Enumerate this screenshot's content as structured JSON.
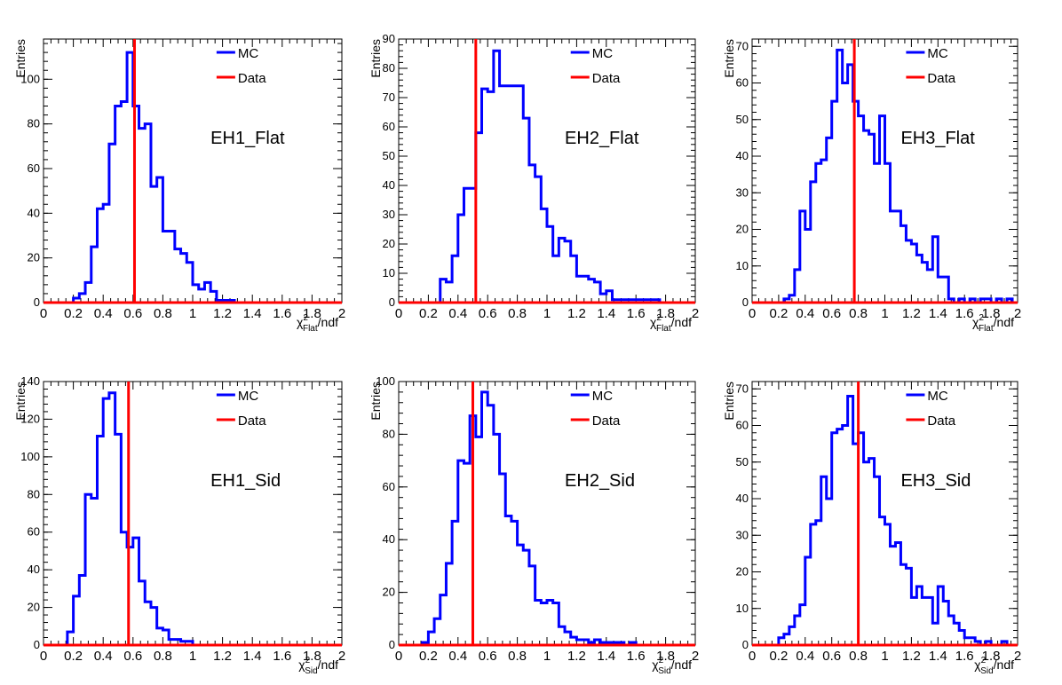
{
  "chart_data": [
    {
      "type": "bar",
      "id": "p1",
      "panel_label": "EH1_Flat",
      "ylabel": "Entries",
      "xlabel": {
        "sym": "χ",
        "sup": "2",
        "sub": "Flat",
        "tail": "/ndf"
      },
      "xlim": [
        0,
        2
      ],
      "xticks": [
        "0",
        "0.2",
        "0.4",
        "0.6",
        "0.8",
        "1",
        "1.2",
        "1.4",
        "1.6",
        "1.8",
        "2"
      ],
      "ylim": [
        0,
        118
      ],
      "yticks": [
        0,
        20,
        40,
        60,
        80,
        100
      ],
      "bin_width": 0.04,
      "data_line_x": 0.61,
      "mc_values": [
        0,
        0,
        0,
        0,
        0,
        2,
        4,
        9,
        25,
        42,
        44,
        71,
        88,
        90,
        112,
        88,
        78,
        80,
        52,
        56,
        32,
        32,
        24,
        22,
        18,
        8,
        6,
        9,
        5,
        1,
        1,
        1,
        0,
        0,
        0,
        0,
        0,
        0,
        0,
        0,
        0,
        0,
        0,
        0,
        0,
        0,
        0,
        0,
        0,
        0
      ],
      "legend": [
        {
          "name": "MC",
          "color": "#0000ff"
        },
        {
          "name": "Data",
          "color": "#ff0000"
        }
      ]
    },
    {
      "type": "bar",
      "id": "p2",
      "panel_label": "EH2_Flat",
      "ylabel": "Entries",
      "xlabel": {
        "sym": "χ",
        "sup": "2",
        "sub": "Flat",
        "tail": "/ndf"
      },
      "xlim": [
        0,
        2
      ],
      "xticks": [
        "0",
        "0.2",
        "0.4",
        "0.6",
        "0.8",
        "1",
        "1.2",
        "1.4",
        "1.6",
        "1.8",
        "2"
      ],
      "ylim": [
        0,
        90
      ],
      "yticks": [
        0,
        10,
        20,
        30,
        40,
        50,
        60,
        70,
        80,
        90
      ],
      "bin_width": 0.04,
      "data_line_x": 0.52,
      "mc_values": [
        0,
        0,
        0,
        0,
        0,
        0,
        0,
        8,
        7,
        16,
        30,
        39,
        39,
        58,
        73,
        72,
        86,
        74,
        74,
        74,
        74,
        63,
        47,
        43,
        32,
        26,
        16,
        22,
        21,
        16,
        9,
        9,
        8,
        7,
        3,
        4,
        1,
        1,
        1,
        1,
        1,
        1,
        1,
        1,
        0,
        0,
        0,
        0,
        0,
        0
      ],
      "legend": [
        {
          "name": "MC",
          "color": "#0000ff"
        },
        {
          "name": "Data",
          "color": "#ff0000"
        }
      ]
    },
    {
      "type": "bar",
      "id": "p3",
      "panel_label": "EH3_Flat",
      "ylabel": "Entries",
      "xlabel": {
        "sym": "χ",
        "sup": "2",
        "sub": "Flat",
        "tail": "/ndf"
      },
      "xlim": [
        0,
        2
      ],
      "xticks": [
        "0",
        "0.2",
        "0.4",
        "0.6",
        "0.8",
        "1",
        "1.2",
        "1.4",
        "1.6",
        "1.8",
        "2"
      ],
      "ylim": [
        0,
        72
      ],
      "yticks": [
        0,
        10,
        20,
        30,
        40,
        50,
        60,
        70
      ],
      "bin_width": 0.04,
      "data_line_x": 0.77,
      "mc_values": [
        0,
        0,
        0,
        0,
        0,
        0,
        1,
        2,
        9,
        25,
        20,
        33,
        38,
        39,
        45,
        55,
        69,
        60,
        65,
        55,
        51,
        47,
        46,
        38,
        51,
        38,
        25,
        25,
        21,
        17,
        16,
        13,
        11,
        9,
        18,
        7,
        7,
        1,
        0,
        1,
        0,
        1,
        0,
        1,
        1,
        0,
        1,
        0,
        1,
        0
      ],
      "legend": [
        {
          "name": "MC",
          "color": "#0000ff"
        },
        {
          "name": "Data",
          "color": "#ff0000"
        }
      ]
    },
    {
      "type": "bar",
      "id": "p4",
      "panel_label": "EH1_Sid",
      "ylabel": "Entries",
      "xlabel": {
        "sym": "χ",
        "sup": "2",
        "sub": "Sid",
        "tail": "/ndf"
      },
      "xlim": [
        0,
        2
      ],
      "xticks": [
        "0",
        "0.2",
        "0.4",
        "0.6",
        "0.8",
        "1",
        "1.2",
        "1.4",
        "1.6",
        "1.8",
        "2"
      ],
      "ylim": [
        0,
        140
      ],
      "yticks": [
        0,
        20,
        40,
        60,
        80,
        100,
        120,
        140
      ],
      "bin_width": 0.04,
      "data_line_x": 0.57,
      "mc_values": [
        0,
        0,
        0,
        0,
        7,
        26,
        37,
        80,
        78,
        111,
        131,
        134,
        112,
        60,
        52,
        57,
        34,
        23,
        20,
        9,
        8,
        3,
        3,
        2,
        2,
        0,
        0,
        0,
        0,
        0,
        0,
        0,
        0,
        0,
        0,
        0,
        0,
        0,
        0,
        0,
        0,
        0,
        0,
        0,
        0,
        0,
        0,
        0,
        0,
        0
      ],
      "legend": [
        {
          "name": "MC",
          "color": "#0000ff"
        },
        {
          "name": "Data",
          "color": "#ff0000"
        }
      ]
    },
    {
      "type": "bar",
      "id": "p5",
      "panel_label": "EH2_Sid",
      "ylabel": "Entries",
      "xlabel": {
        "sym": "χ",
        "sup": "2",
        "sub": "Sid",
        "tail": "/ndf"
      },
      "xlim": [
        0,
        2
      ],
      "xticks": [
        "0",
        "0.2",
        "0.4",
        "0.6",
        "0.8",
        "1",
        "1.2",
        "1.4",
        "1.6",
        "1.8",
        "2"
      ],
      "ylim": [
        0,
        100
      ],
      "yticks": [
        0,
        20,
        40,
        60,
        80,
        100
      ],
      "bin_width": 0.04,
      "data_line_x": 0.5,
      "mc_values": [
        0,
        0,
        0,
        0,
        1,
        5,
        10,
        19,
        31,
        47,
        70,
        69,
        87,
        79,
        96,
        91,
        80,
        65,
        49,
        47,
        38,
        36,
        30,
        17,
        16,
        17,
        16,
        7,
        5,
        3,
        2,
        2,
        1,
        2,
        1,
        1,
        1,
        1,
        0,
        1,
        0,
        0,
        0,
        0,
        0,
        0,
        0,
        0,
        0,
        0
      ],
      "legend": [
        {
          "name": "MC",
          "color": "#0000ff"
        },
        {
          "name": "Data",
          "color": "#ff0000"
        }
      ]
    },
    {
      "type": "bar",
      "id": "p6",
      "panel_label": "EH3_Sid",
      "ylabel": "Entries",
      "xlabel": {
        "sym": "χ",
        "sup": "2",
        "sub": "Sid",
        "tail": "/ndf"
      },
      "xlim": [
        0,
        2
      ],
      "xticks": [
        "0",
        "0.2",
        "0.4",
        "0.6",
        "0.8",
        "1",
        "1.2",
        "1.4",
        "1.6",
        "1.8",
        "2"
      ],
      "ylim": [
        0,
        72
      ],
      "yticks": [
        0,
        10,
        20,
        30,
        40,
        50,
        60,
        70
      ],
      "bin_width": 0.04,
      "data_line_x": 0.8,
      "mc_values": [
        0,
        0,
        0,
        0,
        0,
        2,
        3,
        5,
        8,
        11,
        24,
        33,
        34,
        46,
        40,
        58,
        59,
        60,
        68,
        55,
        58,
        50,
        51,
        46,
        35,
        33,
        27,
        28,
        22,
        21,
        13,
        16,
        13,
        13,
        6,
        16,
        12,
        8,
        6,
        4,
        2,
        2,
        1,
        0,
        1,
        0,
        0,
        1,
        0,
        0
      ],
      "legend": [
        {
          "name": "MC",
          "color": "#0000ff"
        },
        {
          "name": "Data",
          "color": "#ff0000"
        }
      ]
    }
  ]
}
